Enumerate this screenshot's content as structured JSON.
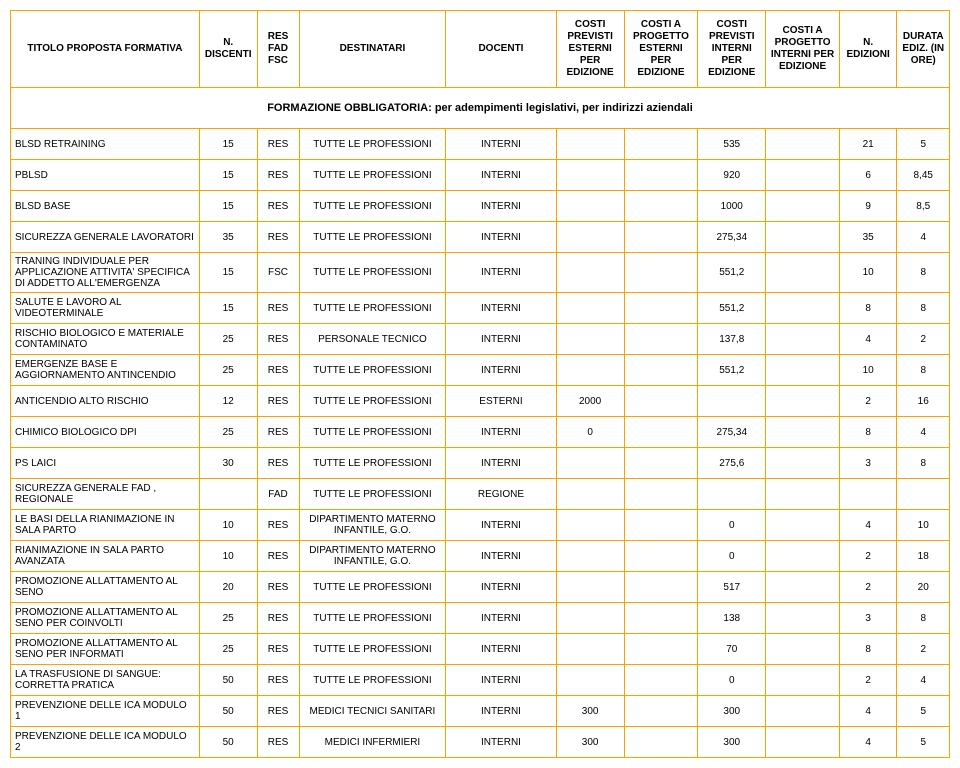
{
  "headers": [
    "TITOLO PROPOSTA FORMATIVA",
    "N. DISCENTI",
    "RES\nFAD\nFSC",
    "DESTINATARI",
    "DOCENTI",
    "COSTI PREVISTI ESTERNI PER EDIZIONE",
    "COSTI A PROGETTO ESTERNI PER EDIZIONE",
    "COSTI PREVISTI INTERNI PER EDIZIONE",
    "COSTI A PROGETTO INTERNI PER EDIZIONE",
    "N. EDIZIONI",
    "DURATA EDIZ. (IN ORE)"
  ],
  "section": "FORMAZIONE OBBLIGATORIA: per adempimenti legislativi, per indirizzi aziendali",
  "rows": [
    {
      "title": "BLSD RETRAINING",
      "disc": "15",
      "res": "RES",
      "dest": "TUTTE LE PROFESSIONI",
      "doc": "INTERNI",
      "c1": "",
      "c2": "",
      "c3": "535",
      "c4": "",
      "ed": "21",
      "dur": "5"
    },
    {
      "title": "PBLSD",
      "disc": "15",
      "res": "RES",
      "dest": "TUTTE LE PROFESSIONI",
      "doc": "INTERNI",
      "c1": "",
      "c2": "",
      "c3": "920",
      "c4": "",
      "ed": "6",
      "dur": "8,45"
    },
    {
      "title": "BLSD BASE",
      "disc": "15",
      "res": "RES",
      "dest": "TUTTE LE PROFESSIONI",
      "doc": "INTERNI",
      "c1": "",
      "c2": "",
      "c3": "1000",
      "c4": "",
      "ed": "9",
      "dur": "8,5"
    },
    {
      "title": "SICUREZZA GENERALE LAVORATORI",
      "disc": "35",
      "res": "RES",
      "dest": "TUTTE LE PROFESSIONI",
      "doc": "INTERNI",
      "c1": "",
      "c2": "",
      "c3": "275,34",
      "c4": "",
      "ed": "35",
      "dur": "4"
    },
    {
      "title": "TRANING INDIVIDUALE PER APPLICAZIONE ATTIVITA' SPECIFICA DI ADDETTO ALL'EMERGENZA",
      "disc": "15",
      "res": "FSC",
      "dest": "TUTTE LE PROFESSIONI",
      "doc": "INTERNI",
      "c1": "",
      "c2": "",
      "c3": "551,2",
      "c4": "",
      "ed": "10",
      "dur": "8"
    },
    {
      "title": "SALUTE E LAVORO AL VIDEOTERMINALE",
      "disc": "15",
      "res": "RES",
      "dest": "TUTTE LE PROFESSIONI",
      "doc": "INTERNI",
      "c1": "",
      "c2": "",
      "c3": "551,2",
      "c4": "",
      "ed": "8",
      "dur": "8"
    },
    {
      "title": "RISCHIO BIOLOGICO E MATERIALE CONTAMINATO",
      "disc": "25",
      "res": "RES",
      "dest": "PERSONALE TECNICO",
      "doc": "INTERNI",
      "c1": "",
      "c2": "",
      "c3": "137,8",
      "c4": "",
      "ed": "4",
      "dur": "2"
    },
    {
      "title": "EMERGENZE BASE E AGGIORNAMENTO ANTINCENDIO",
      "disc": "25",
      "res": "RES",
      "dest": "TUTTE LE PROFESSIONI",
      "doc": "INTERNI",
      "c1": "",
      "c2": "",
      "c3": "551,2",
      "c4": "",
      "ed": "10",
      "dur": "8"
    },
    {
      "title": "ANTICENDIO ALTO RISCHIO",
      "disc": "12",
      "res": "RES",
      "dest": "TUTTE LE PROFESSIONI",
      "doc": "ESTERNI",
      "c1": "2000",
      "c2": "",
      "c3": "",
      "c4": "",
      "ed": "2",
      "dur": "16"
    },
    {
      "title": "CHIMICO BIOLOGICO DPI",
      "disc": "25",
      "res": "RES",
      "dest": "TUTTE LE PROFESSIONI",
      "doc": "INTERNI",
      "c1": "0",
      "c2": "",
      "c3": "275,34",
      "c4": "",
      "ed": "8",
      "dur": "4"
    },
    {
      "title": "PS LAICI",
      "disc": "30",
      "res": "RES",
      "dest": "TUTTE LE PROFESSIONI",
      "doc": "INTERNI",
      "c1": "",
      "c2": "",
      "c3": "275,6",
      "c4": "",
      "ed": "3",
      "dur": "8"
    },
    {
      "title": "SICUREZZA GENERALE FAD , REGIONALE",
      "disc": "",
      "res": "FAD",
      "dest": "TUTTE LE PROFESSIONI",
      "doc": "REGIONE",
      "c1": "",
      "c2": "",
      "c3": "",
      "c4": "",
      "ed": "",
      "dur": ""
    },
    {
      "title": "LE BASI DELLA RIANIMAZIONE IN SALA PARTO",
      "disc": "10",
      "res": "RES",
      "dest": "DIPARTIMENTO MATERNO INFANTILE, G.O.",
      "doc": "INTERNI",
      "c1": "",
      "c2": "",
      "c3": "0",
      "c4": "",
      "ed": "4",
      "dur": "10"
    },
    {
      "title": " RIANIMAZIONE IN SALA PARTO AVANZATA",
      "disc": "10",
      "res": "RES",
      "dest": "DIPARTIMENTO MATERNO INFANTILE, G.O.",
      "doc": "INTERNI",
      "c1": "",
      "c2": "",
      "c3": "0",
      "c4": "",
      "ed": "2",
      "dur": "18"
    },
    {
      "title": "PROMOZIONE ALLATTAMENTO AL SENO",
      "disc": "20",
      "res": "RES",
      "dest": "TUTTE LE PROFESSIONI",
      "doc": "INTERNI",
      "c1": "",
      "c2": "",
      "c3": "517",
      "c4": "",
      "ed": "2",
      "dur": "20"
    },
    {
      "title": "PROMOZIONE ALLATTAMENTO AL SENO PER COINVOLTI",
      "disc": "25",
      "res": "RES",
      "dest": "TUTTE LE PROFESSIONI",
      "doc": "INTERNI",
      "c1": "",
      "c2": "",
      "c3": "138",
      "c4": "",
      "ed": "3",
      "dur": "8"
    },
    {
      "title": "PROMOZIONE ALLATTAMENTO AL SENO PER INFORMATI",
      "disc": "25",
      "res": "RES",
      "dest": "TUTTE LE PROFESSIONI",
      "doc": "INTERNI",
      "c1": "",
      "c2": "",
      "c3": "70",
      "c4": "",
      "ed": "8",
      "dur": "2"
    },
    {
      "title": "LA TRASFUSIONE DI SANGUE: CORRETTA PRATICA",
      "disc": "50",
      "res": "RES",
      "dest": "TUTTE LE PROFESSIONI",
      "doc": "INTERNI",
      "c1": "",
      "c2": "",
      "c3": "0",
      "c4": "",
      "ed": "2",
      "dur": "4"
    },
    {
      "title": "PREVENZIONE DELLE ICA MODULO 1",
      "disc": "50",
      "res": "RES",
      "dest": "MEDICI TECNICI SANITARI",
      "doc": "INTERNI",
      "c1": "300",
      "c2": "",
      "c3": "300",
      "c4": "",
      "ed": "4",
      "dur": "5"
    },
    {
      "title": "PREVENZIONE DELLE ICA MODULO 2",
      "disc": "50",
      "res": "RES",
      "dest": "MEDICI INFERMIERI",
      "doc": "INTERNI",
      "c1": "300",
      "c2": "",
      "c3": "300",
      "c4": "",
      "ed": "4",
      "dur": "5"
    }
  ]
}
